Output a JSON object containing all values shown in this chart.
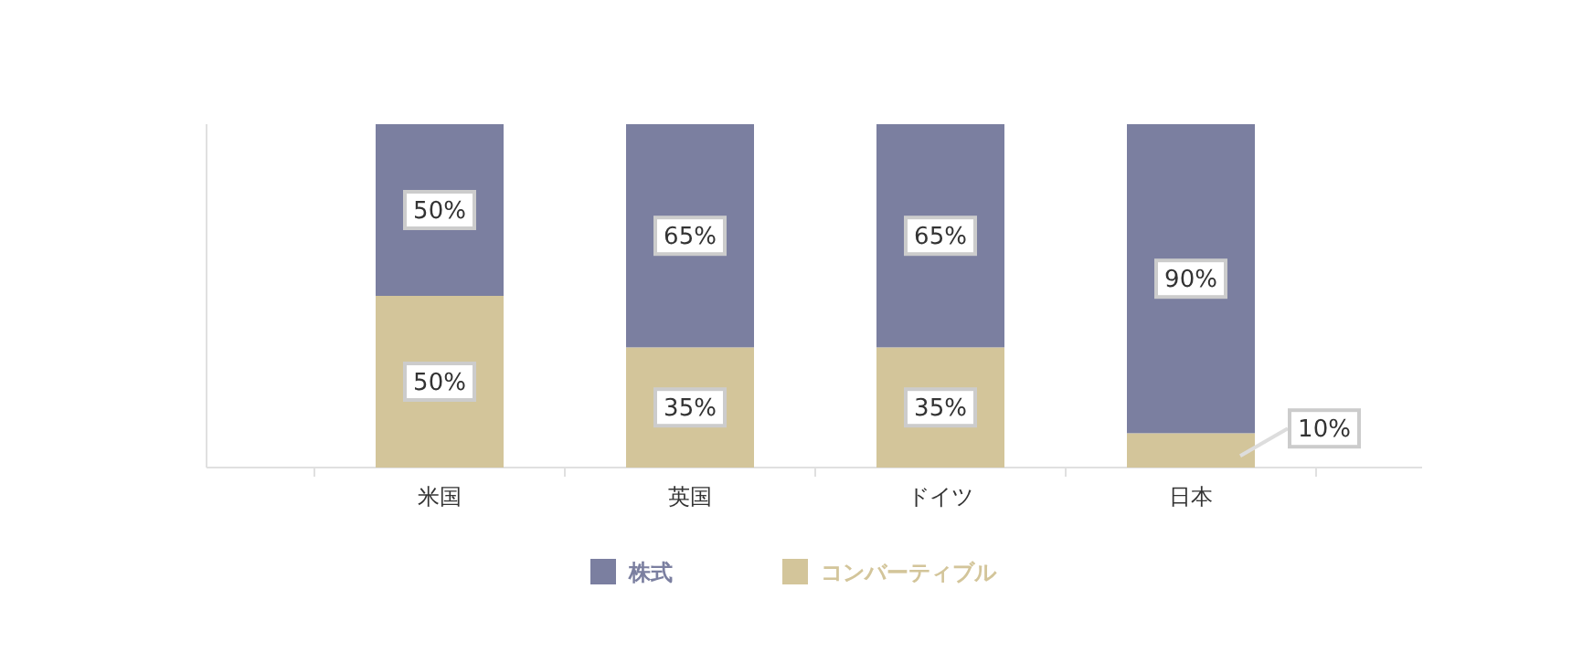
{
  "chart_data": {
    "type": "bar",
    "stacked": true,
    "categories": [
      "米国",
      "英国",
      "ドイツ",
      "日本"
    ],
    "series": [
      {
        "name": "コンバーティブル",
        "color": "#d3c59a",
        "values": [
          50,
          35,
          35,
          10
        ],
        "value_labels": [
          "50%",
          "35%",
          "35%",
          "10%"
        ]
      },
      {
        "name": "株式",
        "color": "#7b7fa0",
        "values": [
          50,
          65,
          65,
          90
        ],
        "value_labels": [
          "50%",
          "65%",
          "65%",
          "90%"
        ]
      }
    ],
    "legend": "bottom",
    "grid": false
  }
}
